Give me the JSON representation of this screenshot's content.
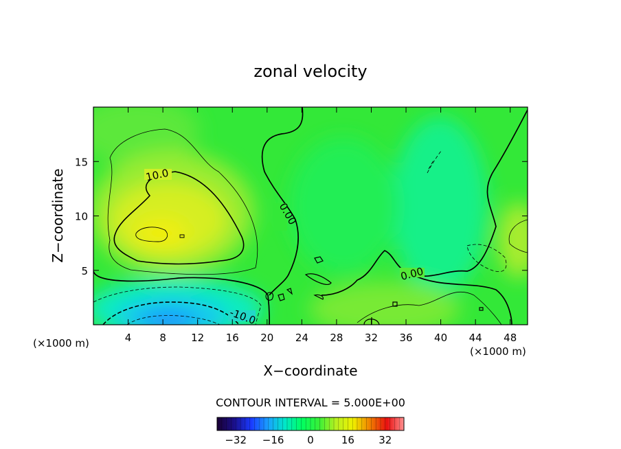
{
  "chart_data": {
    "type": "heatmap",
    "title": "zonal velocity",
    "xlabel": "X−coordinate",
    "ylabel": "Z−coordinate",
    "x_unit_left": "(×1000 m)",
    "x_unit_right": "(×1000 m)",
    "xlim": [
      0,
      50
    ],
    "ylim": [
      0,
      20
    ],
    "x_ticks": [
      {
        "value": 4,
        "label": "4"
      },
      {
        "value": 8,
        "label": "8"
      },
      {
        "value": 12,
        "label": "12"
      },
      {
        "value": 16,
        "label": "16"
      },
      {
        "value": 20,
        "label": "20"
      },
      {
        "value": 24,
        "label": "24"
      },
      {
        "value": 28,
        "label": "28"
      },
      {
        "value": 32,
        "label": "32"
      },
      {
        "value": 36,
        "label": "36"
      },
      {
        "value": 40,
        "label": "40"
      },
      {
        "value": 44,
        "label": "44"
      },
      {
        "value": 48,
        "label": "48"
      }
    ],
    "y_ticks": [
      {
        "value": 5,
        "label": "5"
      },
      {
        "value": 10,
        "label": "10"
      },
      {
        "value": 15,
        "label": "15"
      }
    ],
    "contour_interval_label": "CONTOUR INTERVAL = 5.000E+00",
    "contour_interval": 5.0,
    "contour_labels": [
      {
        "text": "10.0",
        "x": 7.6,
        "z": 13.6
      },
      {
        "text": "0.00",
        "x": 22.3,
        "z": 10.0
      },
      {
        "text": "0.00",
        "x": 37.6,
        "z": 4.5
      },
      {
        "text": "-10.0",
        "x": 16.5,
        "z": 0.8
      }
    ],
    "features": [
      {
        "kind": "max",
        "x": 7.5,
        "z": 8.5,
        "value": 15
      },
      {
        "kind": "min",
        "x": 9,
        "z": 1.0,
        "value": -20
      }
    ],
    "colorbar": {
      "range": [
        -40,
        40
      ],
      "ticks": [
        {
          "value": -32,
          "label": "−32"
        },
        {
          "value": -16,
          "label": "−16"
        },
        {
          "value": 0,
          "label": "0"
        },
        {
          "value": 16,
          "label": "16"
        },
        {
          "value": 32,
          "label": "32"
        }
      ],
      "colors": [
        "#1a0033",
        "#1a0f8a",
        "#1a3aff",
        "#1aa0ff",
        "#00e8c8",
        "#00ff60",
        "#38f038",
        "#b8f020",
        "#f0f000",
        "#f08000",
        "#e81010",
        "#ff9090"
      ]
    }
  }
}
